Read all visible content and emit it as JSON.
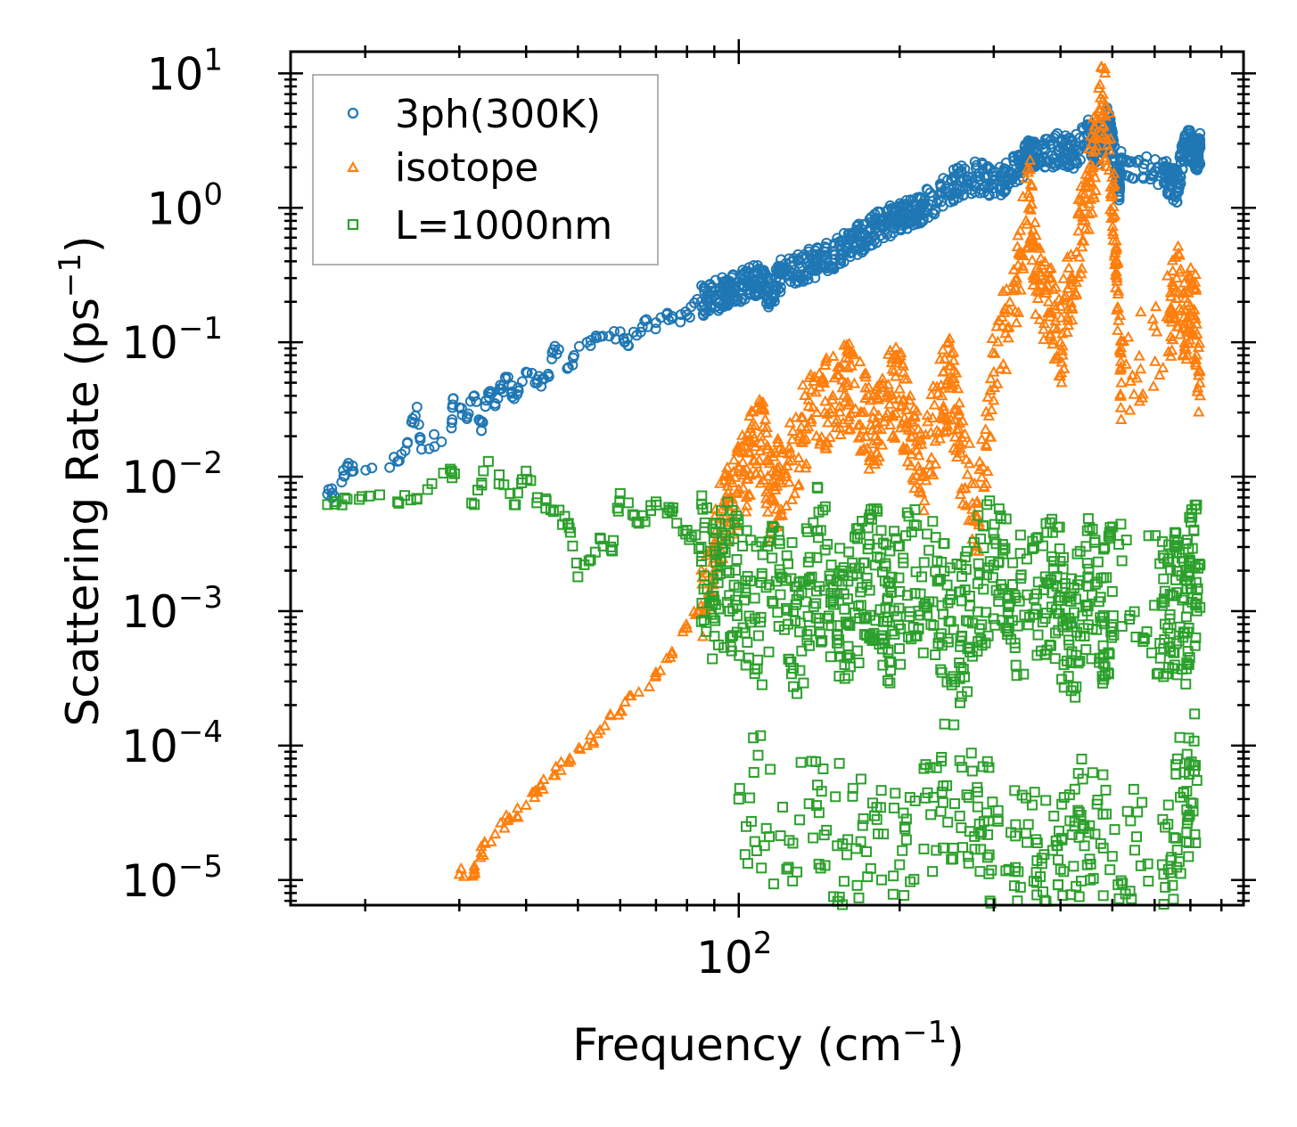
{
  "chart_data": {
    "type": "scatter",
    "xscale": "log",
    "yscale": "log",
    "xlabel": "Frequency (cm",
    "xlabel_sup": "−1",
    "xlabel_end": ")",
    "ylabel": "Scattering Rate (ps",
    "ylabel_sup": "−1",
    "ylabel_end": ")",
    "xlim": [
      14.5,
      880
    ],
    "ylim": [
      6.5e-06,
      14.5
    ],
    "x_major_ticks": [
      {
        "value": 100,
        "base": "10",
        "exp": "2"
      }
    ],
    "y_major_ticks": [
      {
        "value": 10,
        "base": "10",
        "exp": "1"
      },
      {
        "value": 1,
        "base": "10",
        "exp": "0"
      },
      {
        "value": 0.1,
        "base": "10",
        "exp": "−1"
      },
      {
        "value": 0.01,
        "base": "10",
        "exp": "−2"
      },
      {
        "value": 0.001,
        "base": "10",
        "exp": "−3"
      },
      {
        "value": 0.0001,
        "base": "10",
        "exp": "−4"
      },
      {
        "value": 1e-05,
        "base": "10",
        "exp": "−5"
      }
    ],
    "legend_position": "top-left",
    "series": [
      {
        "name": "3ph(300K)",
        "marker": "circle",
        "color": "#1f77b4",
        "points": [
          [
            17,
            0.0074
          ],
          [
            17.5,
            0.0072
          ],
          [
            18.5,
            0.012
          ],
          [
            19,
            0.011
          ],
          [
            23,
            0.013
          ],
          [
            24,
            0.018
          ],
          [
            25,
            0.033
          ],
          [
            25.5,
            0.016
          ],
          [
            29,
            0.023
          ],
          [
            29.2,
            0.038
          ],
          [
            31,
            0.027
          ],
          [
            32,
            0.04
          ],
          [
            33,
            0.022
          ],
          [
            34,
            0.042
          ],
          [
            35,
            0.035
          ],
          [
            36,
            0.045
          ],
          [
            37,
            0.055
          ],
          [
            38,
            0.038
          ],
          [
            40,
            0.06
          ],
          [
            42,
            0.05
          ],
          [
            44,
            0.058
          ],
          [
            45,
            0.088
          ],
          [
            48,
            0.065
          ],
          [
            52,
            0.1
          ],
          [
            55,
            0.11
          ],
          [
            60,
            0.12
          ],
          [
            62,
            0.095
          ],
          [
            66,
            0.13
          ],
          [
            70,
            0.14
          ],
          [
            75,
            0.15
          ],
          [
            80,
            0.16
          ],
          [
            85,
            0.2
          ],
          [
            90,
            0.22
          ],
          [
            95,
            0.24
          ],
          [
            100,
            0.26
          ],
          [
            105,
            0.28
          ],
          [
            110,
            0.3
          ],
          [
            115,
            0.22
          ],
          [
            120,
            0.32
          ],
          [
            130,
            0.36
          ],
          [
            140,
            0.4
          ],
          [
            150,
            0.45
          ],
          [
            160,
            0.55
          ],
          [
            170,
            0.6
          ],
          [
            180,
            0.7
          ],
          [
            190,
            0.8
          ],
          [
            200,
            0.85
          ],
          [
            210,
            0.9
          ],
          [
            220,
            1.0
          ],
          [
            240,
            1.3
          ],
          [
            260,
            1.6
          ],
          [
            280,
            1.7
          ],
          [
            300,
            1.5
          ],
          [
            320,
            1.8
          ],
          [
            340,
            2.2
          ],
          [
            350,
            2.6
          ],
          [
            370,
            2.4
          ],
          [
            400,
            2.8
          ],
          [
            420,
            2.5
          ],
          [
            450,
            3.5
          ],
          [
            470,
            2.6
          ],
          [
            490,
            4.5
          ],
          [
            500,
            3.0
          ],
          [
            515,
            1.4
          ],
          [
            520,
            2.2
          ],
          [
            620,
            1.8
          ],
          [
            640,
            1.6
          ],
          [
            660,
            1.4
          ],
          [
            680,
            2.6
          ],
          [
            700,
            3.0
          ],
          [
            720,
            2.4
          ],
          [
            730,
            2.8
          ]
        ],
        "scatter_bands": [
          [
            85,
            0.3
          ],
          [
            300,
            0.25
          ]
        ]
      },
      {
        "name": "isotope",
        "marker": "triangle",
        "color": "#ff7f0e",
        "points": [
          [
            30,
            1.1e-05
          ],
          [
            32,
            1.2e-05
          ],
          [
            33,
            1.6e-05
          ],
          [
            35,
            2.2e-05
          ],
          [
            37,
            2.8e-05
          ],
          [
            40,
            3.6e-05
          ],
          [
            42,
            4.5e-05
          ],
          [
            45,
            6e-05
          ],
          [
            48,
            7.5e-05
          ],
          [
            52,
            0.0001
          ],
          [
            55,
            0.00013
          ],
          [
            60,
            0.00018
          ],
          [
            65,
            0.00025
          ],
          [
            70,
            0.00035
          ],
          [
            75,
            0.0005
          ],
          [
            80,
            0.00075
          ],
          [
            85,
            0.0011
          ],
          [
            90,
            0.003
          ],
          [
            95,
            0.006
          ],
          [
            100,
            0.008
          ],
          [
            105,
            0.015
          ],
          [
            110,
            0.02
          ],
          [
            115,
            0.007
          ],
          [
            120,
            0.01
          ],
          [
            130,
            0.02
          ],
          [
            140,
            0.03
          ],
          [
            150,
            0.04
          ],
          [
            160,
            0.05
          ],
          [
            170,
            0.03
          ],
          [
            180,
            0.02
          ],
          [
            190,
            0.04
          ],
          [
            200,
            0.045
          ],
          [
            210,
            0.02
          ],
          [
            220,
            0.01
          ],
          [
            240,
            0.04
          ],
          [
            250,
            0.05
          ],
          [
            260,
            0.015
          ],
          [
            280,
            0.005
          ],
          [
            300,
            0.06
          ],
          [
            330,
            0.25
          ],
          [
            350,
            1.2
          ],
          [
            360,
            0.3
          ],
          [
            380,
            0.2
          ],
          [
            400,
            0.1
          ],
          [
            420,
            0.3
          ],
          [
            440,
            0.8
          ],
          [
            460,
            2.0
          ],
          [
            480,
            7.0
          ],
          [
            500,
            1.5
          ],
          [
            510,
            0.3
          ],
          [
            520,
            0.05
          ],
          [
            640,
            0.15
          ],
          [
            660,
            0.3
          ],
          [
            690,
            0.12
          ],
          [
            710,
            0.25
          ],
          [
            730,
            0.04
          ]
        ],
        "scatter_bands": [
          [
            90,
            0.6
          ],
          [
            330,
            0.55
          ]
        ]
      },
      {
        "name": "L=1000nm",
        "marker": "square",
        "color": "#2ca02c",
        "points": [
          [
            17,
            0.0062
          ],
          [
            18.5,
            0.0068
          ],
          [
            23,
            0.0065
          ],
          [
            25,
            0.0068
          ],
          [
            29,
            0.011
          ],
          [
            32,
            0.0062
          ],
          [
            34,
            0.013
          ],
          [
            38,
            0.0062
          ],
          [
            40,
            0.011
          ],
          [
            42,
            0.007
          ],
          [
            45,
            0.0055
          ],
          [
            48,
            0.0045
          ],
          [
            50,
            0.0018
          ],
          [
            55,
            0.0035
          ],
          [
            58,
            0.0028
          ],
          [
            60,
            0.0075
          ],
          [
            65,
            0.0045
          ],
          [
            70,
            0.0065
          ],
          [
            75,
            0.0055
          ],
          [
            80,
            0.004
          ],
          [
            85,
            0.003
          ],
          [
            90,
            0.0012
          ],
          [
            95,
            0.002
          ],
          [
            100,
            0.0015
          ],
          [
            110,
            0.0009
          ],
          [
            120,
            0.0018
          ],
          [
            130,
            0.0007
          ],
          [
            140,
            0.0025
          ],
          [
            150,
            0.0012
          ],
          [
            160,
            0.0008
          ],
          [
            170,
            0.0015
          ],
          [
            180,
            0.0022
          ],
          [
            190,
            0.0009
          ],
          [
            200,
            0.0014
          ],
          [
            220,
            0.0018
          ],
          [
            240,
            0.0011
          ],
          [
            260,
            0.0006
          ],
          [
            280,
            0.0016
          ],
          [
            300,
            0.0022
          ],
          [
            320,
            0.0013
          ],
          [
            350,
            0.0009
          ],
          [
            380,
            0.0016
          ],
          [
            400,
            0.0012
          ],
          [
            420,
            0.0005
          ],
          [
            450,
            0.0018
          ],
          [
            480,
            0.0009
          ],
          [
            500,
            0.0014
          ],
          [
            620,
            0.0011
          ],
          [
            650,
            0.0013
          ],
          [
            680,
            0.0007
          ],
          [
            700,
            0.0016
          ],
          [
            730,
            0.0022
          ],
          [
            100,
            4e-05
          ],
          [
            130,
            2.8e-05
          ],
          [
            160,
            2e-05
          ],
          [
            200,
            1.3e-05
          ],
          [
            240,
            4.5e-05
          ],
          [
            280,
            3.5e-05
          ],
          [
            320,
            1.2e-05
          ],
          [
            360,
            2e-05
          ],
          [
            400,
            1.2e-05
          ],
          [
            440,
            2.5e-05
          ],
          [
            500,
            1.5e-05
          ],
          [
            620,
            1.3e-05
          ],
          [
            680,
            4.5e-05
          ],
          [
            720,
            5.5e-05
          ]
        ],
        "scatter_bands": [
          [
            85,
            0.8
          ],
          [
            300,
            0.9
          ]
        ]
      }
    ]
  }
}
